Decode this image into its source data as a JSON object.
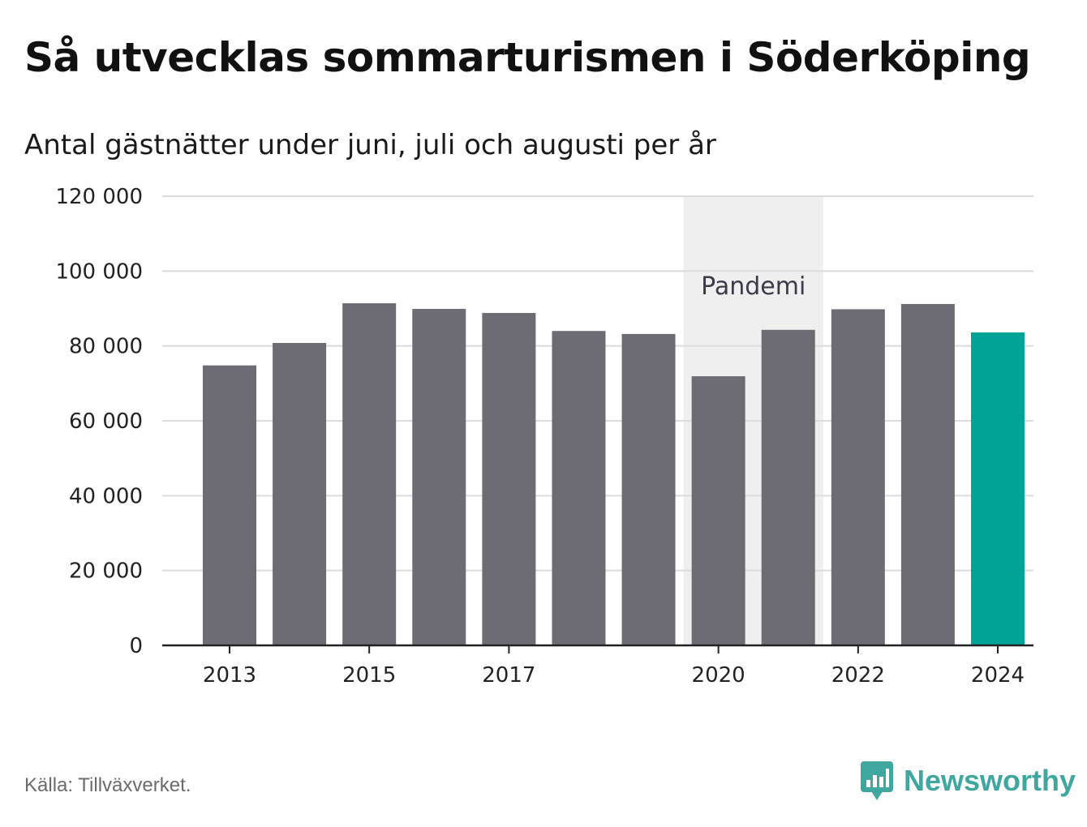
{
  "title": "Så utvecklas sommarturismen i Söderköping",
  "subtitle": "Antal gästnätter under juni, juli och augusti per år",
  "source": "Källa: Tillväxverket.",
  "brand": {
    "name": "Newsworthy",
    "icon": "newsworthy-logo-icon"
  },
  "colors": {
    "bar": "#6d6c74",
    "highlight": "#00a396",
    "band": "#efefef",
    "grid": "#dcdcdc",
    "axis": "#222222"
  },
  "chart_data": {
    "type": "bar",
    "title": "Så utvecklas sommarturismen i Söderköping",
    "subtitle": "Antal gästnätter under juni, juli och augusti per år",
    "xlabel": "",
    "ylabel": "",
    "categories": [
      2013,
      2014,
      2015,
      2016,
      2017,
      2018,
      2019,
      2020,
      2021,
      2022,
      2023,
      2024
    ],
    "values": [
      74800,
      80800,
      91400,
      89900,
      88800,
      84000,
      83200,
      71900,
      84300,
      89800,
      91200,
      83600
    ],
    "highlight_category": 2024,
    "ylim": [
      0,
      120000
    ],
    "yticks": [
      0,
      20000,
      40000,
      60000,
      80000,
      100000,
      120000
    ],
    "ytick_labels": [
      "0",
      "20 000",
      "40 000",
      "60 000",
      "80 000",
      "100 000",
      "120 000"
    ],
    "xtick_labels": [
      "2013",
      "2015",
      "2017",
      "2020",
      "2022",
      "2024"
    ],
    "grid": true,
    "legend": "none",
    "annotations": [
      {
        "label": "Pandemi",
        "x_start": 2020,
        "x_end": 2021
      }
    ]
  }
}
